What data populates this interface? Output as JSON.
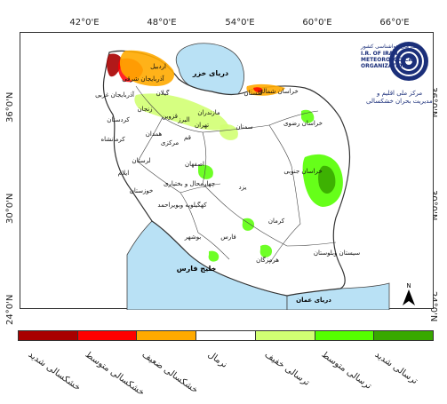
{
  "map": {
    "longitude_ticks": [
      "42°0'E",
      "48°0'E",
      "54°0'E",
      "60°0'E",
      "66°0'E"
    ],
    "latitude_ticks_left": [
      "36°0'N",
      "30°0'N",
      "24°0'N"
    ],
    "latitude_ticks_right": [
      "36°0'N",
      "30°0'N",
      "24°0'N"
    ],
    "seas": {
      "caspian": "دریای خزر",
      "persian_gulf": "خلیج فارس",
      "oman_sea": "دریای عمان"
    },
    "provinces": [
      "اردبیل",
      "آذربایجان شرقی",
      "آذربایجان غربی",
      "زنجان",
      "گیلان",
      "قزوین",
      "مازندران",
      "البرز",
      "تهران",
      "کردستان",
      "کرمانشاه",
      "همدان",
      "مرکزی",
      "قم",
      "سمنان",
      "گلستان",
      "خراسان شمالی",
      "خراسان رضوی",
      "خراسان جنوبی",
      "لرستان",
      "ایلام",
      "اصفهان",
      "خوزستان",
      "چهارمحال و بختیاری",
      "کهگیلویه وبویراحمد",
      "یزد",
      "فارس",
      "بوشهر",
      "کرمان",
      "هرمزگان",
      "سیستان وبلوستان"
    ],
    "north_label": "N"
  },
  "logo": {
    "line1": "سازمان هواشناسی کشور",
    "line2": "I.R. OF IRAN",
    "line3": "METEOROLOGICAL",
    "line4": "ORGANIZATION",
    "caption1": "مرکز ملی اقلیم و",
    "caption2": "مدیریت بحران خشکسالی"
  },
  "legend": {
    "items": [
      {
        "label": "خشکسالی شدید",
        "color": "#a80000"
      },
      {
        "label": "خشکسالی متوسط",
        "color": "#ff0000"
      },
      {
        "label": "خشکسالی ضعیف",
        "color": "#ffaa00"
      },
      {
        "label": "نرمال",
        "color": "#ffffff"
      },
      {
        "label": "ترسالی خفیف",
        "color": "#d1ff73"
      },
      {
        "label": "ترسالی متوسط",
        "color": "#55ff00"
      },
      {
        "label": "ترسالی شدید",
        "color": "#38a800"
      }
    ]
  },
  "colors": {
    "water": "#b9e1f5",
    "land": "#ffffff",
    "border": "#444444"
  }
}
